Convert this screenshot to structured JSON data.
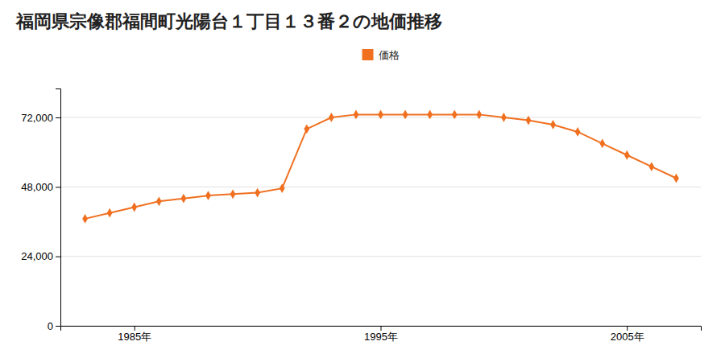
{
  "chart_data": {
    "type": "line",
    "title": "福岡県宗像郡福間町光陽台１丁目１３番２の地価推移",
    "x": [
      1983,
      1984,
      1985,
      1986,
      1987,
      1988,
      1989,
      1990,
      1991,
      1992,
      1993,
      1994,
      1995,
      1996,
      1997,
      1998,
      1999,
      2000,
      2001,
      2002,
      2003,
      2004,
      2005,
      2006,
      2007
    ],
    "series": [
      {
        "name": "価格",
        "color": "#f07020",
        "marker": "diamond",
        "values": [
          37000,
          39000,
          41000,
          43000,
          44000,
          45000,
          45500,
          46000,
          47500,
          68000,
          72000,
          73000,
          73000,
          73000,
          73000,
          73000,
          73000,
          72000,
          71000,
          69500,
          67000,
          63000,
          59000,
          55000,
          51000
        ]
      }
    ],
    "xlim": [
      1982,
      2008
    ],
    "xticks": [
      {
        "value": 1985,
        "label": "1985年"
      },
      {
        "value": 1995,
        "label": "1995年"
      },
      {
        "value": 2005,
        "label": "2005年"
      }
    ],
    "ylim": [
      0,
      82000
    ],
    "yticks": [
      0,
      {
        "value": 24000,
        "label": "24,000"
      },
      {
        "value": 48000,
        "label": "48,000"
      },
      {
        "value": 72000,
        "label": "72,000"
      }
    ],
    "grid": "y",
    "legend": "top"
  }
}
